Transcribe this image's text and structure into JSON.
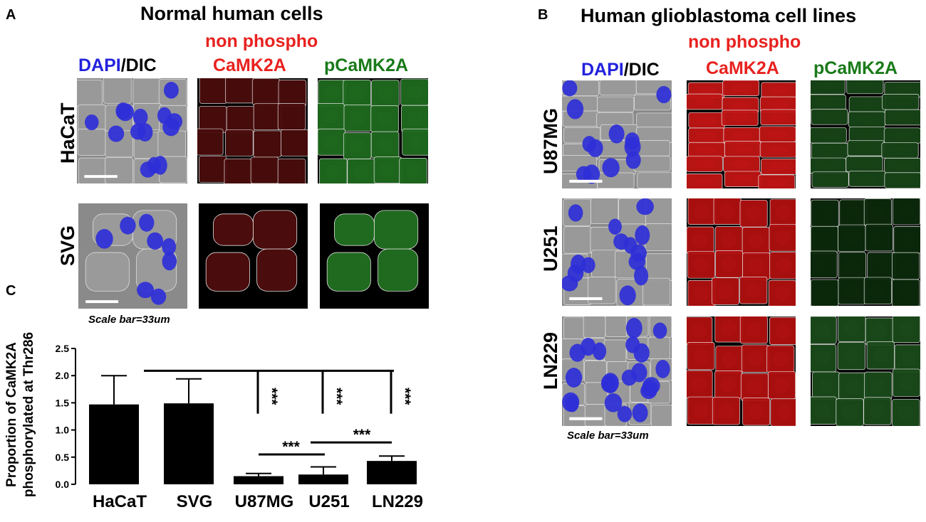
{
  "panel_a": {
    "letter": "A",
    "title": "Normal human cells",
    "non_phospho": "non phospho",
    "col_dapi": "DAPI",
    "col_slash_dic": "/DIC",
    "col_camk2a": "CaMK2A",
    "col_pcamk2a": "pCaMK2A",
    "rows": [
      "HaCaT",
      "SVG"
    ],
    "scale_note": "Scale bar=33um"
  },
  "panel_b": {
    "letter": "B",
    "title": "Human glioblastoma cell lines",
    "non_phospho": "non phospho",
    "col_dapi": "DAPI",
    "col_slash_dic": "/DIC",
    "col_camk2a": "CaMK2A",
    "col_pcamk2a": "pCaMK2A",
    "rows": [
      "U87MG",
      "U251",
      "LN229"
    ],
    "scale_note": "Scale bar=33um"
  },
  "panel_c": {
    "letter": "C"
  },
  "colors": {
    "red_label": "#e8221f",
    "green_label": "#1a7a1a",
    "blue_label": "#2222dd",
    "bar_fill": "#000000"
  },
  "chart_data": {
    "type": "bar",
    "categories": [
      "HaCaT",
      "SVG",
      "U87MG",
      "U251",
      "LN229"
    ],
    "values": [
      1.47,
      1.49,
      0.15,
      0.18,
      0.43
    ],
    "errors": [
      0.53,
      0.45,
      0.05,
      0.14,
      0.09
    ],
    "ylabel_line1": "Proportion of CaMK2A",
    "ylabel_line2": "phosphorylated at Thr286",
    "ylim": [
      0,
      2.5
    ],
    "yticks": [
      "0.0",
      "0.5",
      "1.0",
      "1.5",
      "2.0",
      "2.5"
    ],
    "significance": [
      "***",
      "***",
      "***",
      "***",
      "***"
    ]
  }
}
